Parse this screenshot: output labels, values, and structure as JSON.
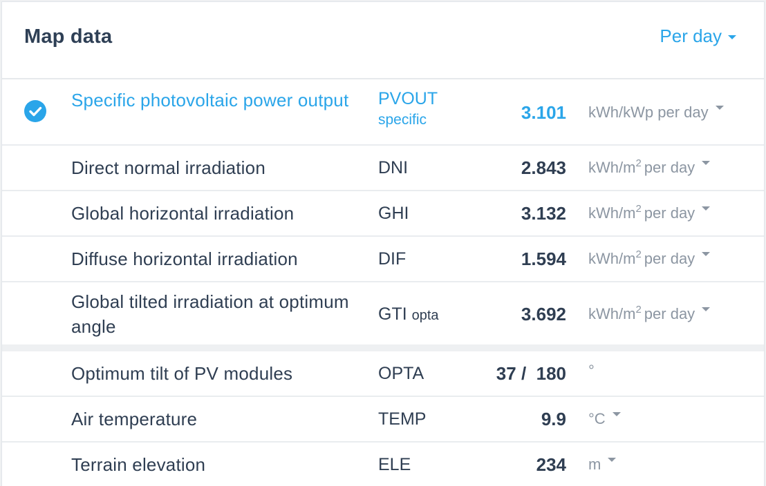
{
  "header": {
    "title": "Map data",
    "period": "Per day"
  },
  "colors": {
    "accent": "#2aa5e9",
    "text": "#2f3e52",
    "muted": "#8c96a2"
  },
  "rows": [
    {
      "label": "Specific photovoltaic power output",
      "code": "PVOUT",
      "code_sub": "specific",
      "value": "3.101",
      "unit": "kWh/kWp per day",
      "selected": true
    },
    {
      "label": "Direct normal irradiation",
      "code": "DNI",
      "value": "2.843",
      "unit_main": "kWh/m",
      "unit_sup": "2",
      "unit_rest": "per day"
    },
    {
      "label": "Global horizontal irradiation",
      "code": "GHI",
      "value": "3.132",
      "unit_main": "kWh/m",
      "unit_sup": "2",
      "unit_rest": "per day"
    },
    {
      "label": "Diffuse horizontal irradiation",
      "code": "DIF",
      "value": "1.594",
      "unit_main": "kWh/m",
      "unit_sup": "2",
      "unit_rest": "per day"
    },
    {
      "label": "Global tilted irradiation at optimum angle",
      "code": "GTI",
      "code_sub": "opta",
      "value": "3.692",
      "unit_main": "kWh/m",
      "unit_sup": "2",
      "unit_rest": "per day"
    },
    {
      "label": "Optimum tilt of PV modules",
      "code": "OPTA",
      "value": "37 /  180",
      "unit": "°"
    },
    {
      "label": "Air temperature",
      "code": "TEMP",
      "value": "9.9",
      "unit": "°C"
    },
    {
      "label": "Terrain elevation",
      "code": "ELE",
      "value": "234",
      "unit": "m"
    }
  ]
}
